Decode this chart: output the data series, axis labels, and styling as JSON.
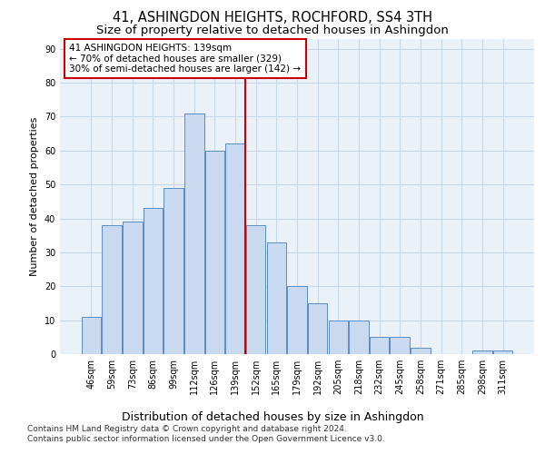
{
  "title": "41, ASHINGDON HEIGHTS, ROCHFORD, SS4 3TH",
  "subtitle": "Size of property relative to detached houses in Ashingdon",
  "xlabel": "Distribution of detached houses by size in Ashingdon",
  "ylabel": "Number of detached properties",
  "categories": [
    "46sqm",
    "59sqm",
    "73sqm",
    "86sqm",
    "99sqm",
    "112sqm",
    "126sqm",
    "139sqm",
    "152sqm",
    "165sqm",
    "179sqm",
    "192sqm",
    "205sqm",
    "218sqm",
    "232sqm",
    "245sqm",
    "258sqm",
    "271sqm",
    "285sqm",
    "298sqm",
    "311sqm"
  ],
  "values": [
    11,
    38,
    39,
    43,
    49,
    71,
    60,
    62,
    38,
    33,
    20,
    15,
    10,
    10,
    5,
    5,
    2,
    0,
    0,
    1,
    1
  ],
  "bar_color": "#c9d9f0",
  "bar_edge_color": "#5b8ec4",
  "vline_index": 7,
  "vline_color": "#cc0000",
  "annotation_line1": "41 ASHINGDON HEIGHTS: 139sqm",
  "annotation_line2": "← 70% of detached houses are smaller (329)",
  "annotation_line3": "30% of semi-detached houses are larger (142) →",
  "annotation_box_color": "#ffffff",
  "annotation_box_edge": "#cc0000",
  "ylim": [
    0,
    93
  ],
  "yticks": [
    0,
    10,
    20,
    30,
    40,
    50,
    60,
    70,
    80,
    90
  ],
  "grid_color": "#c8d8e8",
  "background_color": "#eaf1f8",
  "footer_line1": "Contains HM Land Registry data © Crown copyright and database right 2024.",
  "footer_line2": "Contains public sector information licensed under the Open Government Licence v3.0.",
  "title_fontsize": 10.5,
  "subtitle_fontsize": 9.5,
  "xlabel_fontsize": 9,
  "ylabel_fontsize": 8,
  "tick_fontsize": 7,
  "annotation_fontsize": 7.5,
  "footer_fontsize": 6.5
}
